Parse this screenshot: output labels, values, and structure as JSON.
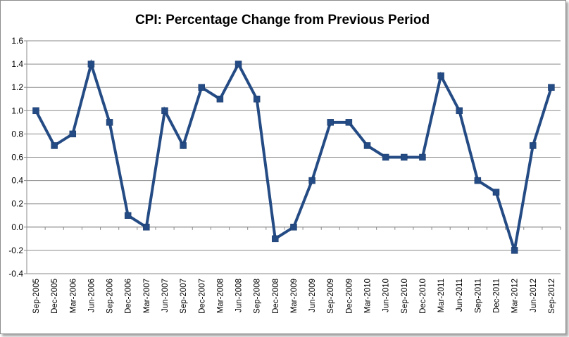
{
  "chart_data": {
    "type": "line",
    "title": "CPI: Percentage Change from Previous Period",
    "xlabel": "",
    "ylabel": "",
    "ylim": [
      -0.4,
      1.6
    ],
    "ytick_step": 0.2,
    "grid": true,
    "legend": "none",
    "categories": [
      "Sep-2005",
      "Dec-2005",
      "Mar-2006",
      "Jun-2006",
      "Sep-2006",
      "Dec-2006",
      "Mar-2007",
      "Jun-2007",
      "Sep-2007",
      "Dec-2007",
      "Mar-2008",
      "Jun-2008",
      "Sep-2008",
      "Dec-2008",
      "Mar-2009",
      "Jun-2009",
      "Sep-2009",
      "Dec-2009",
      "Mar-2010",
      "Jun-2010",
      "Sep-2010",
      "Dec-2010",
      "Mar-2011",
      "Jun-2011",
      "Sep-2011",
      "Dec-2011",
      "Mar-2012",
      "Jun-2012",
      "Sep-2012"
    ],
    "series": [
      {
        "name": "CPI",
        "color": "#244B84",
        "values": [
          1.0,
          0.7,
          0.8,
          1.4,
          0.9,
          0.1,
          0.0,
          1.0,
          0.7,
          1.2,
          1.1,
          1.4,
          1.1,
          -0.1,
          0.0,
          0.4,
          0.9,
          0.9,
          0.7,
          0.6,
          0.6,
          0.6,
          1.3,
          1.0,
          0.4,
          0.3,
          -0.2,
          0.7,
          1.2
        ]
      }
    ]
  }
}
